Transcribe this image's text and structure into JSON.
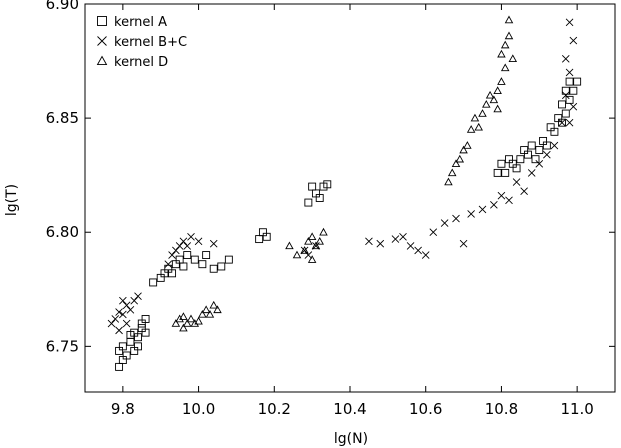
{
  "chart_data": {
    "type": "scatter",
    "title": "",
    "xlabel": "lg(N)",
    "ylabel": "lg(T)",
    "xlim": [
      9.7,
      11.1
    ],
    "ylim": [
      6.73,
      6.9
    ],
    "xticks": [
      "9.8",
      "10.0",
      "10.2",
      "10.4",
      "10.6",
      "10.8",
      "11.0"
    ],
    "yticks": [
      "6.75",
      "6.80",
      "6.85",
      "6.90"
    ],
    "grid": false,
    "legend_position": "top-left",
    "series": [
      {
        "name": "kernel A",
        "marker": "square",
        "points": [
          [
            9.79,
            6.741
          ],
          [
            9.8,
            6.744
          ],
          [
            9.79,
            6.748
          ],
          [
            9.81,
            6.746
          ],
          [
            9.8,
            6.75
          ],
          [
            9.82,
            6.752
          ],
          [
            9.83,
            6.748
          ],
          [
            9.84,
            6.754
          ],
          [
            9.83,
            6.756
          ],
          [
            9.85,
            6.758
          ],
          [
            9.82,
            6.755
          ],
          [
            9.84,
            6.75
          ],
          [
            9.86,
            6.756
          ],
          [
            9.85,
            6.76
          ],
          [
            9.86,
            6.762
          ],
          [
            9.88,
            6.778
          ],
          [
            9.9,
            6.78
          ],
          [
            9.91,
            6.782
          ],
          [
            9.92,
            6.784
          ],
          [
            9.93,
            6.782
          ],
          [
            9.94,
            6.786
          ],
          [
            9.95,
            6.788
          ],
          [
            9.96,
            6.785
          ],
          [
            9.97,
            6.79
          ],
          [
            9.99,
            6.788
          ],
          [
            10.01,
            6.786
          ],
          [
            10.02,
            6.79
          ],
          [
            10.04,
            6.784
          ],
          [
            10.06,
            6.785
          ],
          [
            10.08,
            6.788
          ],
          [
            10.16,
            6.797
          ],
          [
            10.17,
            6.8
          ],
          [
            10.18,
            6.798
          ],
          [
            10.29,
            6.813
          ],
          [
            10.3,
            6.82
          ],
          [
            10.31,
            6.817
          ],
          [
            10.32,
            6.815
          ],
          [
            10.33,
            6.82
          ],
          [
            10.34,
            6.821
          ],
          [
            10.79,
            6.826
          ],
          [
            10.8,
            6.83
          ],
          [
            10.81,
            6.826
          ],
          [
            10.82,
            6.832
          ],
          [
            10.83,
            6.83
          ],
          [
            10.84,
            6.828
          ],
          [
            10.85,
            6.832
          ],
          [
            10.86,
            6.836
          ],
          [
            10.87,
            6.834
          ],
          [
            10.88,
            6.838
          ],
          [
            10.89,
            6.832
          ],
          [
            10.9,
            6.836
          ],
          [
            10.91,
            6.84
          ],
          [
            10.92,
            6.838
          ],
          [
            10.93,
            6.846
          ],
          [
            10.94,
            6.844
          ],
          [
            10.95,
            6.85
          ],
          [
            10.96,
            6.848
          ],
          [
            10.97,
            6.852
          ],
          [
            10.96,
            6.856
          ],
          [
            10.97,
            6.862
          ],
          [
            10.98,
            6.866
          ],
          [
            10.99,
            6.862
          ],
          [
            11.0,
            6.866
          ],
          [
            10.98,
            6.858
          ]
        ]
      },
      {
        "name": "kernel B+C",
        "marker": "x",
        "points": [
          [
            9.77,
            6.76
          ],
          [
            9.78,
            6.762
          ],
          [
            9.79,
            6.765
          ],
          [
            9.8,
            6.764
          ],
          [
            9.81,
            6.768
          ],
          [
            9.82,
            6.766
          ],
          [
            9.83,
            6.77
          ],
          [
            9.79,
            6.757
          ],
          [
            9.81,
            6.76
          ],
          [
            9.84,
            6.772
          ],
          [
            9.8,
            6.77
          ],
          [
            9.92,
            6.786
          ],
          [
            9.93,
            6.79
          ],
          [
            9.94,
            6.792
          ],
          [
            9.95,
            6.794
          ],
          [
            9.96,
            6.796
          ],
          [
            9.97,
            6.794
          ],
          [
            9.98,
            6.798
          ],
          [
            10.0,
            6.796
          ],
          [
            10.04,
            6.795
          ],
          [
            10.28,
            6.792
          ],
          [
            10.29,
            6.79
          ],
          [
            10.31,
            6.794
          ],
          [
            10.45,
            6.796
          ],
          [
            10.48,
            6.795
          ],
          [
            10.52,
            6.797
          ],
          [
            10.54,
            6.798
          ],
          [
            10.56,
            6.794
          ],
          [
            10.58,
            6.792
          ],
          [
            10.6,
            6.79
          ],
          [
            10.62,
            6.8
          ],
          [
            10.65,
            6.804
          ],
          [
            10.68,
            6.806
          ],
          [
            10.7,
            6.795
          ],
          [
            10.72,
            6.808
          ],
          [
            10.75,
            6.81
          ],
          [
            10.78,
            6.812
          ],
          [
            10.8,
            6.816
          ],
          [
            10.82,
            6.814
          ],
          [
            10.84,
            6.822
          ],
          [
            10.86,
            6.818
          ],
          [
            10.88,
            6.826
          ],
          [
            10.9,
            6.83
          ],
          [
            10.92,
            6.834
          ],
          [
            10.94,
            6.838
          ],
          [
            10.96,
            6.848
          ],
          [
            10.97,
            6.86
          ],
          [
            10.98,
            6.87
          ],
          [
            10.99,
            6.884
          ],
          [
            10.98,
            6.892
          ],
          [
            10.97,
            6.876
          ],
          [
            10.99,
            6.855
          ],
          [
            10.98,
            6.848
          ]
        ]
      },
      {
        "name": "kernel D",
        "marker": "triangle",
        "points": [
          [
            9.94,
            6.76
          ],
          [
            9.95,
            6.762
          ],
          [
            9.96,
            6.758
          ],
          [
            9.97,
            6.76
          ],
          [
            9.98,
            6.762
          ],
          [
            9.99,
            6.76
          ],
          [
            10.0,
            6.761
          ],
          [
            10.01,
            6.764
          ],
          [
            10.02,
            6.766
          ],
          [
            10.03,
            6.764
          ],
          [
            10.04,
            6.768
          ],
          [
            10.05,
            6.766
          ],
          [
            9.96,
            6.763
          ],
          [
            10.24,
            6.794
          ],
          [
            10.26,
            6.79
          ],
          [
            10.28,
            6.792
          ],
          [
            10.29,
            6.796
          ],
          [
            10.3,
            6.798
          ],
          [
            10.31,
            6.794
          ],
          [
            10.32,
            6.796
          ],
          [
            10.33,
            6.8
          ],
          [
            10.3,
            6.788
          ],
          [
            10.66,
            6.822
          ],
          [
            10.67,
            6.826
          ],
          [
            10.68,
            6.83
          ],
          [
            10.69,
            6.832
          ],
          [
            10.7,
            6.836
          ],
          [
            10.71,
            6.838
          ],
          [
            10.72,
            6.845
          ],
          [
            10.73,
            6.85
          ],
          [
            10.74,
            6.846
          ],
          [
            10.75,
            6.852
          ],
          [
            10.76,
            6.856
          ],
          [
            10.77,
            6.86
          ],
          [
            10.78,
            6.858
          ],
          [
            10.79,
            6.862
          ],
          [
            10.8,
            6.866
          ],
          [
            10.81,
            6.872
          ],
          [
            10.8,
            6.878
          ],
          [
            10.81,
            6.882
          ],
          [
            10.82,
            6.886
          ],
          [
            10.82,
            6.893
          ],
          [
            10.83,
            6.876
          ],
          [
            10.79,
            6.854
          ]
        ]
      }
    ]
  }
}
